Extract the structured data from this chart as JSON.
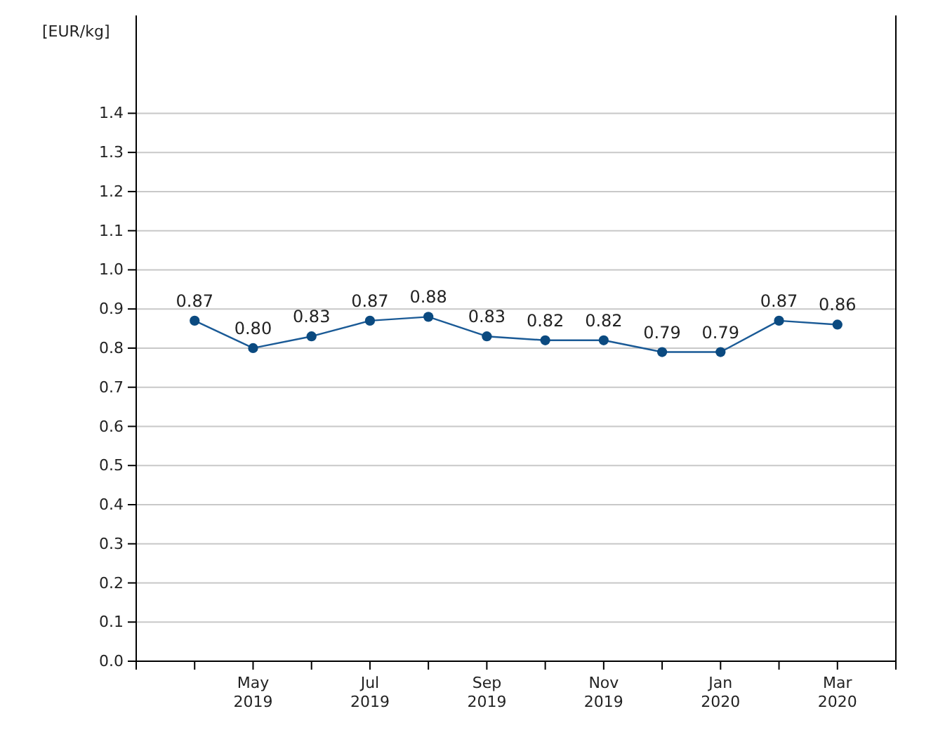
{
  "chart_data": {
    "type": "line",
    "ylabel": "[EUR/kg]",
    "categories": [
      null,
      "May 2019",
      null,
      "Jul 2019",
      null,
      "Sep 2019",
      null,
      "Nov 2019",
      null,
      "Jan 2020",
      null,
      "Mar 2020"
    ],
    "series": [
      {
        "color": "#1a5a96",
        "values": [
          0.87,
          0.8,
          0.83,
          0.87,
          0.88,
          0.83,
          0.82,
          0.82,
          0.79,
          0.79,
          0.87,
          0.86
        ],
        "value_labels": [
          "0.87",
          "0.80",
          "0.83",
          "0.87",
          "0.88",
          "0.83",
          "0.82",
          "0.82",
          "0.79",
          "0.79",
          "0.87",
          "0.86"
        ]
      }
    ],
    "ylim": [
      0,
      1.65
    ],
    "yticks": [
      {
        "value": 0,
        "label": "0.0"
      },
      0.1,
      0.2,
      0.3,
      0.4,
      0.5,
      0.6,
      0.7,
      0.8,
      0.9,
      {
        "value": 1,
        "label": "1.0"
      },
      1.1,
      1.2,
      1.3,
      1.4
    ],
    "grid": "y",
    "marker": "circle",
    "line_style": "solid"
  }
}
